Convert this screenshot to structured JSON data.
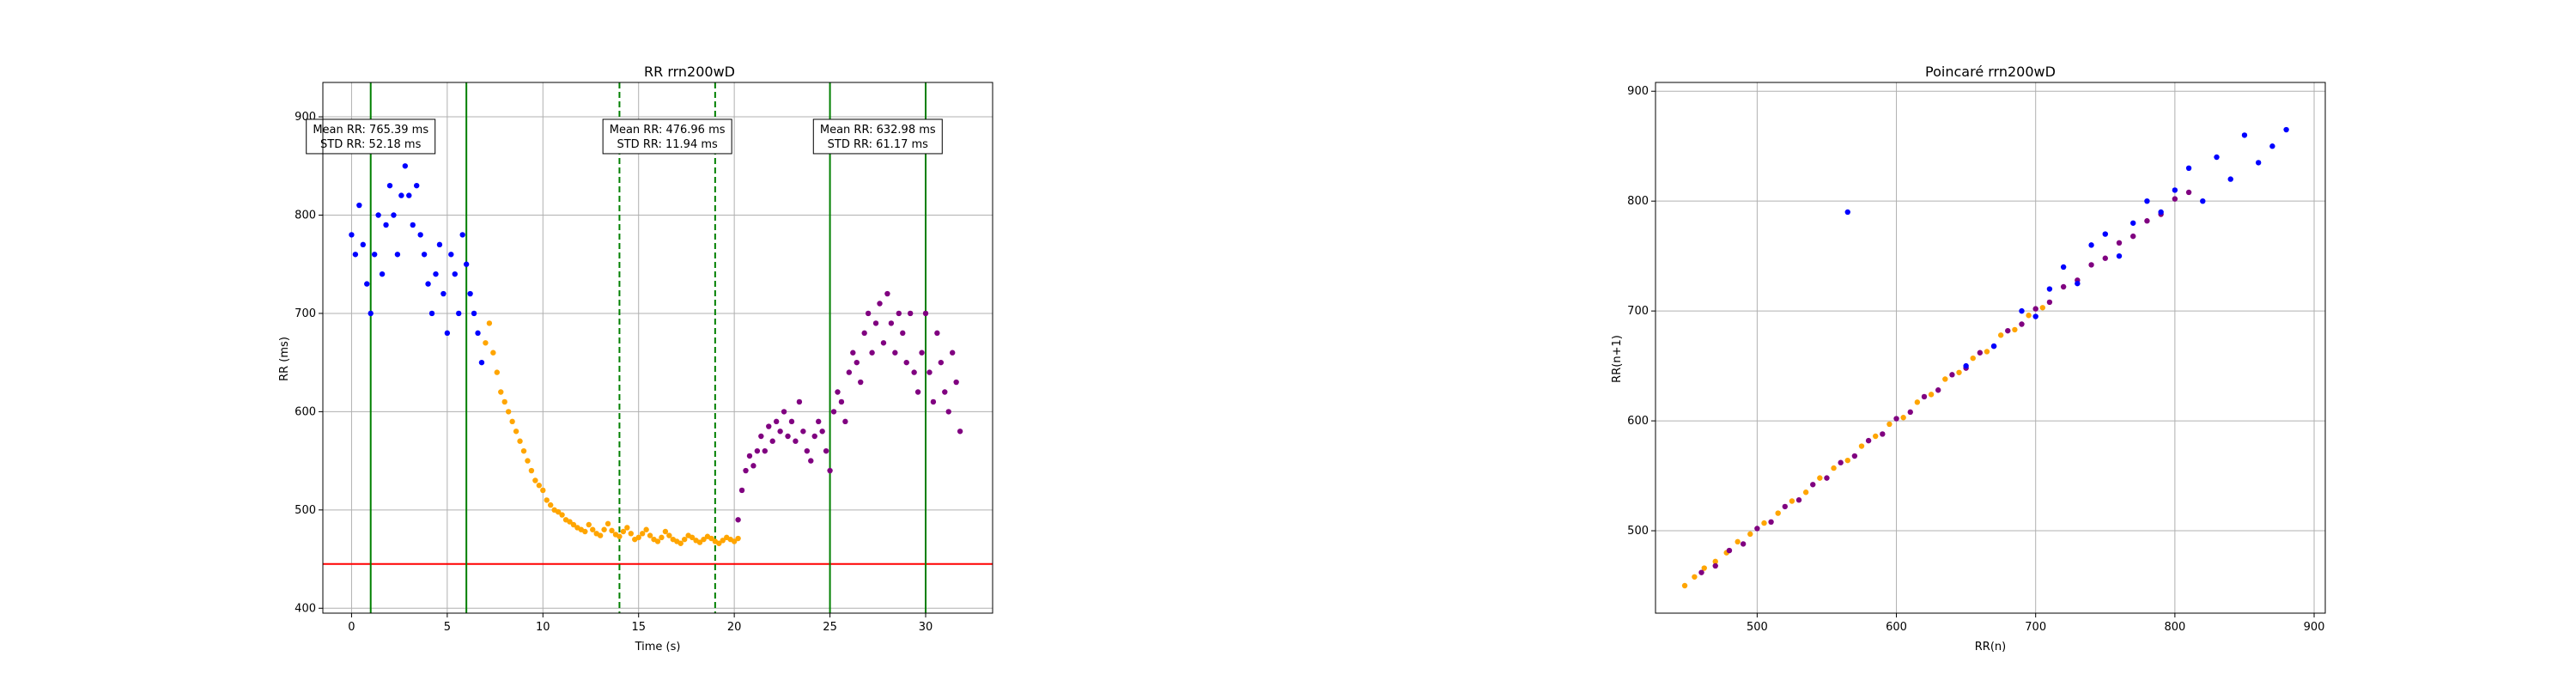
{
  "figure": {
    "background": "#ffffff"
  },
  "chart_data": [
    {
      "type": "scatter",
      "title": "RR rrn200wD",
      "xlabel": "Time (s)",
      "ylabel": "RR (ms)",
      "xlim": [
        -1.5,
        33.5
      ],
      "ylim": [
        395,
        935
      ],
      "xticks": [
        0,
        5,
        10,
        15,
        20,
        25,
        30
      ],
      "yticks": [
        400,
        500,
        600,
        700,
        800,
        900
      ],
      "grid": true,
      "series": [
        {
          "color": "#0000ff",
          "x": [
            0.0,
            0.2,
            0.4,
            0.6,
            0.8,
            1.0,
            1.2,
            1.4,
            1.6,
            1.8,
            2.0,
            2.2,
            2.4,
            2.6,
            2.8,
            3.0,
            3.2,
            3.4,
            3.6,
            3.8,
            4.0,
            4.2,
            4.4,
            4.6,
            4.8,
            5.0,
            5.2,
            5.4,
            5.6,
            5.8,
            6.0,
            6.2,
            6.4,
            6.6,
            6.8
          ],
          "y": [
            780,
            760,
            810,
            770,
            730,
            700,
            760,
            800,
            740,
            790,
            830,
            800,
            760,
            820,
            850,
            820,
            790,
            830,
            780,
            760,
            730,
            700,
            740,
            770,
            720,
            680,
            760,
            740,
            700,
            780,
            750,
            720,
            700,
            680,
            650
          ]
        },
        {
          "color": "#ffa500",
          "x": [
            7.0,
            7.2,
            7.4,
            7.6,
            7.8,
            8.0,
            8.2,
            8.4,
            8.6,
            8.8,
            9.0,
            9.2,
            9.4,
            9.6,
            9.8,
            10.0,
            10.2,
            10.4,
            10.6,
            10.8,
            11.0,
            11.2,
            11.4,
            11.6,
            11.8,
            12.0,
            12.2,
            12.4,
            12.6,
            12.8,
            13.0,
            13.2,
            13.4,
            13.6,
            13.8,
            14.0,
            14.2,
            14.4,
            14.6,
            14.8,
            15.0,
            15.2,
            15.4,
            15.6,
            15.8,
            16.0,
            16.2,
            16.4,
            16.6,
            16.8,
            17.0,
            17.2,
            17.4,
            17.6,
            17.8,
            18.0,
            18.2,
            18.4,
            18.6,
            18.8,
            19.0,
            19.2,
            19.4,
            19.6,
            19.8,
            20.0,
            20.2
          ],
          "y": [
            670,
            690,
            660,
            640,
            620,
            610,
            600,
            590,
            580,
            570,
            560,
            550,
            540,
            530,
            525,
            520,
            510,
            505,
            500,
            498,
            495,
            490,
            488,
            485,
            482,
            480,
            478,
            485,
            480,
            476,
            474,
            480,
            486,
            479,
            475,
            473,
            478,
            482,
            476,
            470,
            472,
            476,
            480,
            474,
            470,
            468,
            472,
            478,
            474,
            470,
            468,
            466,
            470,
            474,
            472,
            469,
            467,
            470,
            473,
            471,
            468,
            466,
            469,
            472,
            470,
            468,
            471
          ]
        },
        {
          "color": "#800080",
          "x": [
            20.2,
            20.4,
            20.6,
            20.8,
            21.0,
            21.2,
            21.4,
            21.6,
            21.8,
            22.0,
            22.2,
            22.4,
            22.6,
            22.8,
            23.0,
            23.2,
            23.4,
            23.6,
            23.8,
            24.0,
            24.2,
            24.4,
            24.6,
            24.8,
            25.0,
            25.2,
            25.4,
            25.6,
            25.8,
            26.0,
            26.2,
            26.4,
            26.6,
            26.8,
            27.0,
            27.2,
            27.4,
            27.6,
            27.8,
            28.0,
            28.2,
            28.4,
            28.6,
            28.8,
            29.0,
            29.2,
            29.4,
            29.6,
            29.8,
            30.0,
            30.2,
            30.4,
            30.6,
            30.8,
            31.0,
            31.2,
            31.4,
            31.6,
            31.8
          ],
          "y": [
            490,
            520,
            540,
            555,
            545,
            560,
            575,
            560,
            585,
            570,
            590,
            580,
            600,
            575,
            590,
            570,
            610,
            580,
            560,
            550,
            575,
            590,
            580,
            560,
            540,
            600,
            620,
            610,
            590,
            640,
            660,
            650,
            630,
            680,
            700,
            660,
            690,
            710,
            670,
            720,
            690,
            660,
            700,
            680,
            650,
            700,
            640,
            620,
            660,
            700,
            640,
            610,
            680,
            650,
            620,
            600,
            660,
            630,
            580
          ]
        }
      ],
      "reference_lines": {
        "horizontal": {
          "y": 445,
          "color": "#ff0000"
        },
        "vertical_solid": {
          "x": [
            1.0,
            6.0,
            25.0,
            30.0
          ],
          "color": "#008000"
        },
        "vertical_dashed": {
          "x": [
            14.0,
            19.0
          ],
          "color": "#008000"
        }
      },
      "annotations": [
        {
          "line1": "Mean RR: 765.39 ms",
          "line2": "STD RR: 52.18 ms",
          "x": 1.0,
          "y": 880
        },
        {
          "line1": "Mean RR: 476.96 ms",
          "line2": "STD RR: 11.94 ms",
          "x": 16.5,
          "y": 880
        },
        {
          "line1": "Mean RR: 632.98 ms",
          "line2": "STD RR: 61.17 ms",
          "x": 27.5,
          "y": 880
        }
      ]
    },
    {
      "type": "scatter",
      "title": "Poincaré rrn200wD",
      "xlabel": "RR(n)",
      "ylabel": "RR(n+1)",
      "xlim": [
        427,
        908
      ],
      "ylim": [
        425,
        908
      ],
      "xticks": [
        500,
        600,
        700,
        800,
        900
      ],
      "yticks": [
        500,
        600,
        700,
        800,
        900
      ],
      "grid": true,
      "series": [
        {
          "color": "#ffa500",
          "x": [
            448,
            455,
            462,
            470,
            478,
            486,
            495,
            505,
            515,
            525,
            535,
            545,
            555,
            565,
            575,
            585,
            595,
            605,
            615,
            625,
            635,
            645,
            655,
            665,
            675,
            685,
            695,
            705
          ],
          "y": [
            450,
            458,
            466,
            472,
            480,
            490,
            497,
            507,
            516,
            527,
            535,
            548,
            557,
            564,
            577,
            586,
            597,
            603,
            617,
            624,
            638,
            644,
            657,
            663,
            678,
            683,
            696,
            703
          ]
        },
        {
          "color": "#800080",
          "x": [
            460,
            470,
            480,
            490,
            500,
            510,
            520,
            530,
            540,
            550,
            560,
            570,
            580,
            590,
            600,
            610,
            620,
            630,
            640,
            650,
            660,
            670,
            680,
            690,
            700,
            710,
            720,
            730,
            740,
            750,
            760,
            770,
            780,
            790,
            800,
            810
          ],
          "y": [
            462,
            468,
            482,
            488,
            502,
            508,
            522,
            528,
            542,
            548,
            562,
            568,
            582,
            588,
            602,
            608,
            622,
            628,
            642,
            648,
            662,
            668,
            682,
            688,
            702,
            708,
            722,
            728,
            742,
            748,
            762,
            768,
            782,
            788,
            802,
            808
          ]
        },
        {
          "color": "#0000ff",
          "x": [
            565,
            650,
            670,
            690,
            700,
            710,
            720,
            730,
            740,
            750,
            760,
            770,
            780,
            790,
            800,
            810,
            820,
            830,
            840,
            850,
            860,
            870,
            880
          ],
          "y": [
            790,
            650,
            668,
            700,
            695,
            720,
            740,
            725,
            760,
            770,
            750,
            780,
            800,
            790,
            810,
            830,
            800,
            840,
            820,
            860,
            835,
            850,
            865
          ]
        }
      ]
    }
  ]
}
